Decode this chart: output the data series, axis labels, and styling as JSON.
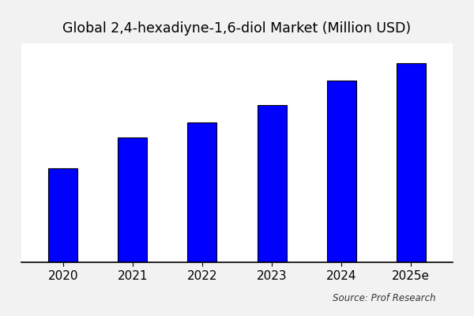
{
  "title": "Global 2,4-hexadiyne-1,6-diol Market (Million USD)",
  "categories": [
    "2020",
    "2021",
    "2022",
    "2023",
    "2024",
    "2025e"
  ],
  "values": [
    43,
    57,
    64,
    72,
    83,
    91
  ],
  "bar_color": "#0000ff",
  "bar_edgecolor": "#000000",
  "background_color": "#f2f2f2",
  "plot_bg_color": "#ffffff",
  "title_fontsize": 12.5,
  "tick_fontsize": 11,
  "source_text": "Source: Prof Research",
  "ylim": [
    0,
    100
  ],
  "bar_width": 0.42,
  "figsize": [
    6.0,
    4.0
  ],
  "dpi": 100
}
